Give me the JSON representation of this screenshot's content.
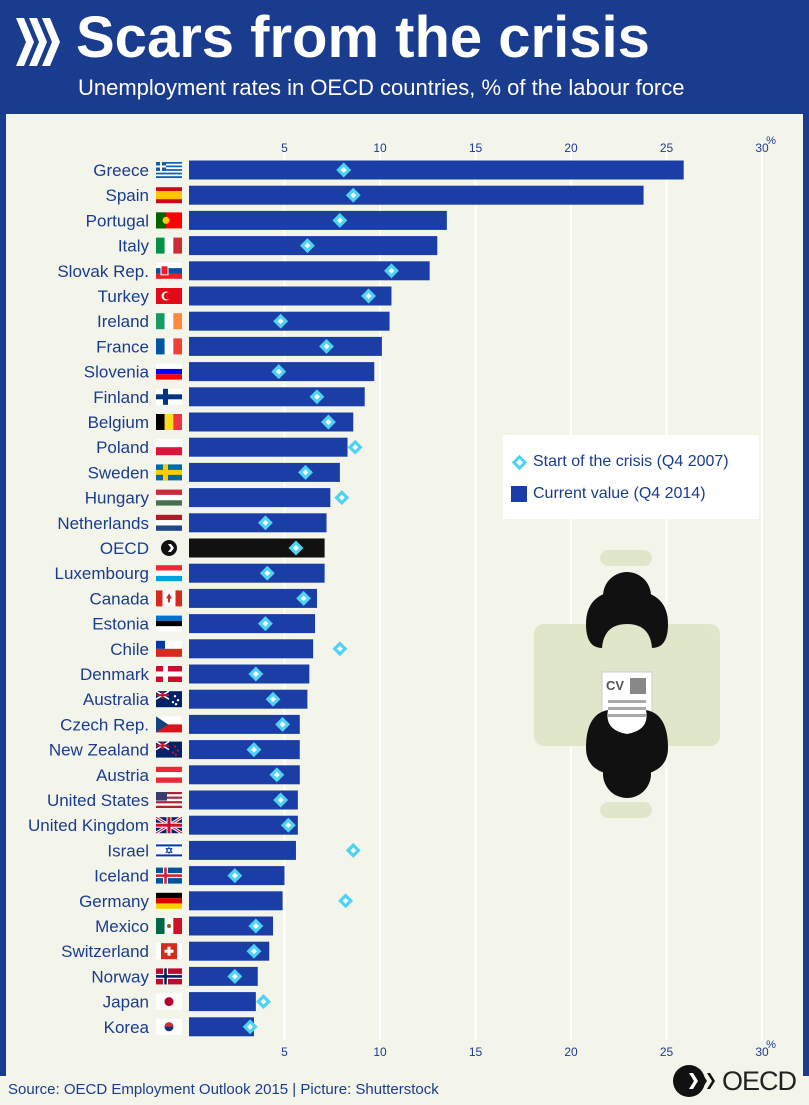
{
  "header": {
    "title": "Scars from the crisis",
    "subtitle": "Unemployment rates in OECD countries, % of the labour force"
  },
  "legend": {
    "start": "Start of the crisis (Q4 2007)",
    "current": "Current value (Q4 2014)"
  },
  "footer": {
    "source": "Source: OECD Employment Outlook 2015 | Picture: Shutterstock",
    "logo_text": "OECD"
  },
  "illustration": {
    "cv_label": "CV"
  },
  "colors": {
    "brand": "#1a3c8e",
    "bar": "#1a3ea6",
    "oecd_bar": "#111111",
    "marker": "#4dd3f3",
    "panel": "#f4f5ea"
  },
  "chart_data": {
    "type": "bar",
    "orientation": "horizontal",
    "title": "Scars from the crisis",
    "subtitle": "Unemployment rates in OECD countries, % of the labour force",
    "xlim": [
      0,
      30
    ],
    "xticks": [
      5,
      10,
      15,
      20,
      25,
      30
    ],
    "xticklabels": [
      "5",
      "10",
      "15",
      "20",
      "25",
      "30"
    ],
    "unit_label": "%",
    "grid": true,
    "categories": [
      "Greece",
      "Spain",
      "Portugal",
      "Italy",
      "Slovak Rep.",
      "Turkey",
      "Ireland",
      "France",
      "Slovenia",
      "Finland",
      "Belgium",
      "Poland",
      "Sweden",
      "Hungary",
      "Netherlands",
      "OECD",
      "Luxembourg",
      "Canada",
      "Estonia",
      "Chile",
      "Denmark",
      "Australia",
      "Czech Rep.",
      "New Zealand",
      "Austria",
      "United States",
      "United Kingdom",
      "Israel",
      "Iceland",
      "Germany",
      "Mexico",
      "Switzerland",
      "Norway",
      "Japan",
      "Korea"
    ],
    "highlight": "OECD",
    "series": [
      {
        "name": "Current value (Q4 2014)",
        "kind": "bar",
        "values": [
          25.9,
          23.8,
          13.5,
          13.0,
          12.6,
          10.6,
          10.5,
          10.1,
          9.7,
          9.2,
          8.6,
          8.3,
          7.9,
          7.4,
          7.2,
          7.1,
          7.1,
          6.7,
          6.6,
          6.5,
          6.3,
          6.2,
          5.8,
          5.8,
          5.8,
          5.7,
          5.7,
          5.6,
          5.0,
          4.9,
          4.4,
          4.2,
          3.6,
          3.5,
          3.4
        ]
      },
      {
        "name": "Start of the crisis (Q4 2007)",
        "kind": "marker",
        "values": [
          8.1,
          8.6,
          7.9,
          6.2,
          10.6,
          9.4,
          4.8,
          7.2,
          4.7,
          6.7,
          7.3,
          8.7,
          6.1,
          8.0,
          4.0,
          5.6,
          4.1,
          6.0,
          4.0,
          7.9,
          3.5,
          4.4,
          4.9,
          3.4,
          4.6,
          4.8,
          5.2,
          8.6,
          2.4,
          8.2,
          3.5,
          3.4,
          2.4,
          3.9,
          3.2
        ]
      }
    ],
    "legend": "top-right, inside"
  }
}
